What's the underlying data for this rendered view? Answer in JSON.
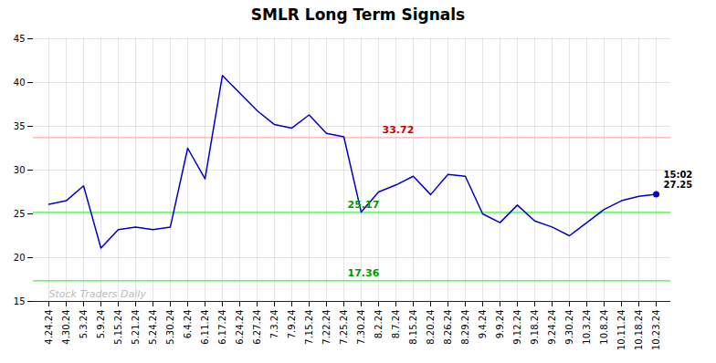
{
  "chart_data": {
    "type": "line",
    "title": "SMLR Long Term Signals",
    "categories": [
      "4.24.24",
      "4.30.24",
      "5.3.24",
      "5.9.24",
      "5.15.24",
      "5.21.24",
      "5.24.24",
      "5.30.24",
      "6.4.24",
      "6.11.24",
      "6.17.24",
      "6.24.24",
      "6.27.24",
      "7.3.24",
      "7.9.24",
      "7.15.24",
      "7.22.24",
      "7.25.24",
      "7.30.24",
      "8.2.24",
      "8.7.24",
      "8.15.24",
      "8.20.24",
      "8.26.24",
      "8.29.24",
      "9.4.24",
      "9.9.24",
      "9.12.24",
      "9.18.24",
      "9.24.24",
      "9.30.24",
      "10.3.24",
      "10.8.24",
      "10.11.24",
      "10.18.24",
      "10.23.24"
    ],
    "values": [
      26.1,
      26.5,
      28.2,
      21.1,
      23.2,
      23.5,
      23.2,
      23.5,
      32.5,
      29.0,
      40.8,
      38.8,
      36.8,
      35.2,
      34.8,
      36.3,
      34.2,
      33.8,
      25.2,
      27.5,
      28.3,
      29.3,
      27.2,
      29.5,
      29.3,
      25.0,
      24.0,
      26.0,
      24.2,
      23.5,
      22.5,
      24.0,
      25.5,
      26.5,
      27.0,
      27.25
    ],
    "color": "#0000cc",
    "ylim": [
      15,
      45
    ],
    "yticks": [
      15,
      20,
      25,
      30,
      35,
      40,
      45
    ],
    "grid": true,
    "reference_lines": [
      {
        "y": 33.72,
        "color": "#ffaaaa"
      },
      {
        "y": 25.17,
        "color": "#44ee44"
      },
      {
        "y": 17.36,
        "color": "#44ee44"
      }
    ],
    "annotations": [
      {
        "text": "33.72",
        "x": "8.2.24",
        "y": 33.72,
        "color": "#cc0000"
      },
      {
        "text": "25.17",
        "x": "7.25.24",
        "y": 25.17,
        "color": "#009900"
      },
      {
        "text": "17.36",
        "x": "7.25.24",
        "y": 17.36,
        "color": "#009900"
      }
    ],
    "end_label": "15:02\n27.25",
    "watermark": {
      "text": "Stock Traders Daily",
      "color": "#bbbbbb"
    }
  }
}
